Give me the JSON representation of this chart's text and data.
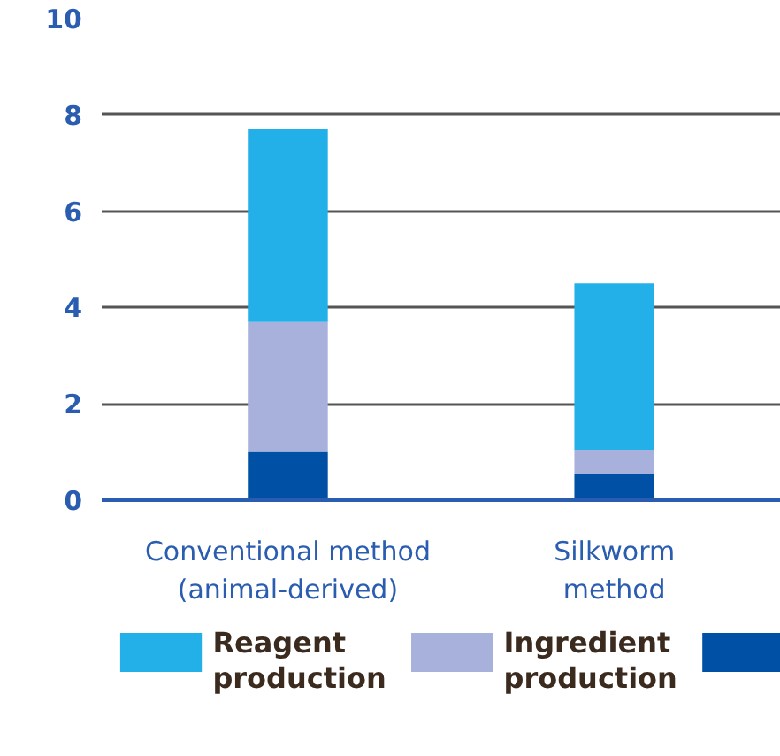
{
  "chart_data": {
    "type": "bar",
    "stacked": true,
    "categories": [
      "Conventional method\n(animal-derived)",
      "Silkworm\nmethod"
    ],
    "series": [
      {
        "color": "#0050a5",
        "values": [
          1.0,
          0.55
        ]
      },
      {
        "name": "Ingredient\nproduction",
        "color": "#a7b1db",
        "values": [
          2.7,
          0.5
        ]
      },
      {
        "name": "Reagent\nproduction",
        "color": "#23b0e9",
        "values": [
          4.0,
          3.45
        ]
      }
    ],
    "ylim": [
      0,
      10
    ],
    "yticks": [
      0,
      2,
      4,
      6,
      8,
      10
    ],
    "grid": "y",
    "legend": "bottom"
  }
}
